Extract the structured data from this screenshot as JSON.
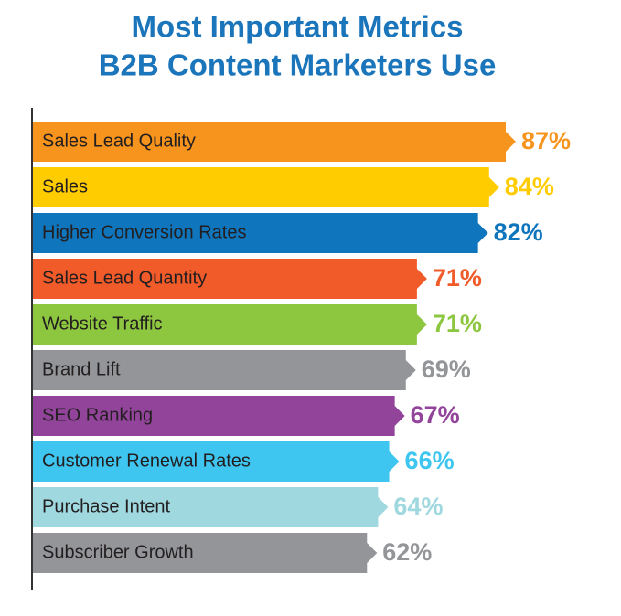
{
  "chart_data": {
    "type": "bar",
    "orientation": "horizontal",
    "title": [
      "Most Important Metrics",
      "B2B Content Marketers Use"
    ],
    "categories": [
      "Sales Lead Quality",
      "Sales",
      "Higher Conversion Rates",
      "Sales Lead Quantity",
      "Website Traffic",
      "Brand Lift",
      "SEO Ranking",
      "Customer Renewal Rates",
      "Purchase Intent",
      "Subscriber Growth"
    ],
    "values": [
      87,
      84,
      82,
      71,
      71,
      69,
      67,
      66,
      64,
      62
    ],
    "value_labels": [
      "87%",
      "84%",
      "82%",
      "71%",
      "71%",
      "69%",
      "67%",
      "66%",
      "64%",
      "62%"
    ],
    "colors": [
      "#f7941d",
      "#ffcc00",
      "#0f75bc",
      "#f15a29",
      "#8dc63f",
      "#939598",
      "#92449b",
      "#3ec6f0",
      "#9fd8df",
      "#939598"
    ]
  }
}
